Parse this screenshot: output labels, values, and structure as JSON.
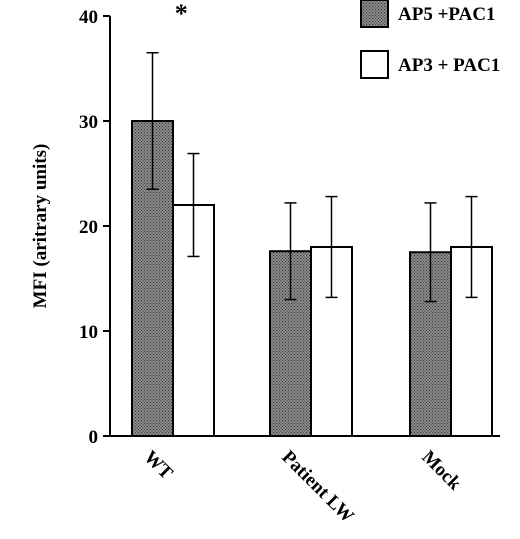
{
  "chart_data": {
    "type": "bar",
    "ylabel": "MFI  (aritrary  units)",
    "ylim": [
      0,
      40
    ],
    "yticks": [
      0,
      10,
      20,
      30,
      40
    ],
    "categories": [
      "WT",
      "Patient LW",
      "Mock"
    ],
    "series": [
      {
        "name": "AP5 +PAC1",
        "values": [
          30,
          17.6,
          17.5
        ],
        "errors": [
          6.5,
          4.6,
          4.7
        ],
        "fill": "#777777",
        "pattern": "dotted"
      },
      {
        "name": "AP3 + PAC1",
        "values": [
          22,
          18,
          18
        ],
        "errors": [
          4.9,
          4.8,
          4.8
        ],
        "fill": "#ffffff"
      }
    ],
    "annotations": [
      {
        "text": "*",
        "category": "WT"
      }
    ],
    "legend_position": "top-right",
    "grid": false
  }
}
